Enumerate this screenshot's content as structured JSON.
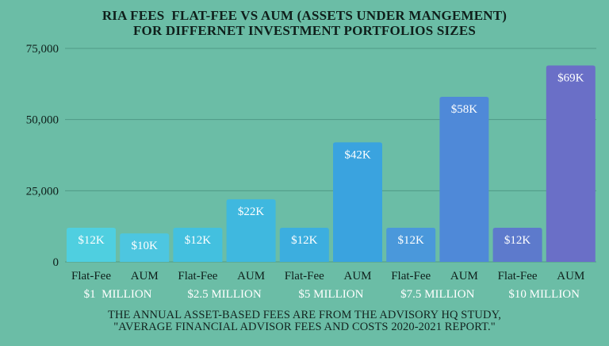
{
  "title_line1": "RIA FEES  FLAT-FEE VS AUM (ASSETS UNDER MANGEMENT)",
  "title_line2": "FOR DIFFERNET INVESTMENT PORTFOLIOS SIZES",
  "footnote_line1": "THE ANNUAL ASSET-BASED FEES ARE FROM THE ADVISORY HQ STUDY,",
  "footnote_line2": "\"AVERAGE FINANCIAL ADVISOR FEES AND COSTS 2020-2021 REPORT.\"",
  "colors": {
    "background": "#6bbda6",
    "group_label": "#ffffff",
    "axis_text": "#0f1f1b"
  },
  "chart_data": {
    "type": "bar",
    "ylim": [
      0,
      75000
    ],
    "yticks": [
      0,
      25000,
      50000,
      75000
    ],
    "ytick_labels": [
      "0",
      "25,000",
      "50,000",
      "75,000"
    ],
    "grid": true,
    "groups": [
      {
        "label": "$1  MILLION",
        "bars": [
          {
            "category": "Flat-Fee",
            "value": 12000,
            "label": "$12K",
            "color": "#4fcfe0"
          },
          {
            "category": "AUM",
            "value": 10000,
            "label": "$10K",
            "color": "#4dc6e0"
          }
        ]
      },
      {
        "label": "$2.5 MILLION",
        "bars": [
          {
            "category": "Flat-Fee",
            "value": 12000,
            "label": "$12K",
            "color": "#43c0df"
          },
          {
            "category": "AUM",
            "value": 22000,
            "label": "$22K",
            "color": "#3fb8df"
          }
        ]
      },
      {
        "label": "$5 MILLION",
        "bars": [
          {
            "category": "Flat-Fee",
            "value": 12000,
            "label": "$12K",
            "color": "#3caedf"
          },
          {
            "category": "AUM",
            "value": 42000,
            "label": "$42K",
            "color": "#3aa3df"
          }
        ]
      },
      {
        "label": "$7.5 MILLION",
        "bars": [
          {
            "category": "Flat-Fee",
            "value": 12000,
            "label": "$12K",
            "color": "#4a98db"
          },
          {
            "category": "AUM",
            "value": 58000,
            "label": "$58K",
            "color": "#4f89d8"
          }
        ]
      },
      {
        "label": "$10 MILLION",
        "bars": [
          {
            "category": "Flat-Fee",
            "value": 12000,
            "label": "$12K",
            "color": "#5d7acc"
          },
          {
            "category": "AUM",
            "value": 69000,
            "label": "$69K",
            "color": "#6a6fc7"
          }
        ]
      }
    ]
  }
}
